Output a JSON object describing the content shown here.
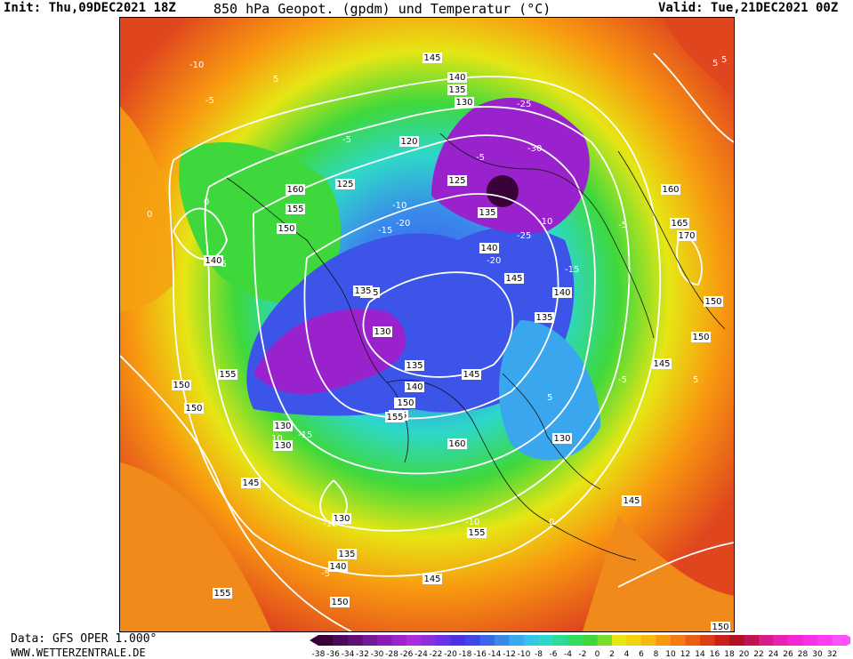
{
  "header": {
    "init": "Init: Thu,09DEC2021 18Z",
    "title": "850 hPa Geopot. (gpdm) und Temperatur (°C)",
    "valid": "Valid: Tue,21DEC2021 00Z"
  },
  "footer": {
    "data_source": "Data: GFS OPER 1.000°",
    "website": "WWW.WETTERZENTRALE.DE"
  },
  "legend": {
    "ticks": [
      "-38",
      "-36",
      "-34",
      "-32",
      "-30",
      "-28",
      "-26",
      "-24",
      "-22",
      "-20",
      "-18",
      "-16",
      "-14",
      "-12",
      "-10",
      "-8",
      "-6",
      "-4",
      "-2",
      "0",
      "2",
      "4",
      "6",
      "8",
      "10",
      "12",
      "14",
      "16",
      "18",
      "20",
      "22",
      "24",
      "26",
      "28",
      "30",
      "32"
    ],
    "colors": [
      "#3a0038",
      "#4c0a5a",
      "#5e1078",
      "#741896",
      "#8a1cb4",
      "#9e22cc",
      "#b02adc",
      "#8c2ee0",
      "#6a32e6",
      "#4c34e6",
      "#3c48e8",
      "#3a66ea",
      "#3a88ec",
      "#3aaaee",
      "#34c6e8",
      "#2ed8c8",
      "#2cdc96",
      "#32dc5c",
      "#3ed83c",
      "#7adc2c",
      "#e6e614",
      "#f2d20e",
      "#f8b80e",
      "#f89a10",
      "#f47c12",
      "#ea5e14",
      "#dc3c16",
      "#c82218",
      "#b4101e",
      "#c01650",
      "#d81c88",
      "#ea22b4",
      "#f428d0",
      "#f830e6",
      "#fa3cf4",
      "#fc50fc"
    ]
  },
  "map": {
    "colors": {
      "frame": "#000000",
      "contour": "#ffffff",
      "coast": "#111111",
      "warm": "#f08a1a",
      "hot": "#e0461e",
      "mild": "#f6c214",
      "cool": "#3ed83c",
      "cold": "#3aa6ee",
      "cold2": "#3c54e8",
      "coldest": "#9a22cc",
      "extreme": "#3a0038"
    },
    "geopotential_labels": [
      "145",
      "140",
      "135",
      "130",
      "120",
      "125",
      "135",
      "140",
      "145",
      "140",
      "135",
      "160",
      "155",
      "150",
      "140",
      "155",
      "170",
      "165",
      "160",
      "150",
      "145",
      "150",
      "135",
      "130",
      "135",
      "145",
      "150",
      "155",
      "160",
      "130",
      "140",
      "150",
      "155",
      "145",
      "130",
      "140",
      "135",
      "145",
      "155",
      "155",
      "145",
      "130",
      "150",
      "150",
      "150",
      "125",
      "130",
      "135",
      "140",
      "150"
    ],
    "temperature_labels": [
      "-10",
      "-5",
      "-5",
      "0",
      "-5",
      "-5",
      "-10",
      "-15",
      "-20",
      "-25",
      "-30",
      "-25",
      "-20",
      "-15",
      "-10",
      "-5",
      "0",
      "5",
      "5",
      "-5",
      "10",
      "5",
      "-10",
      "-10",
      "-15",
      "-5",
      "5",
      "0",
      "5"
    ]
  }
}
